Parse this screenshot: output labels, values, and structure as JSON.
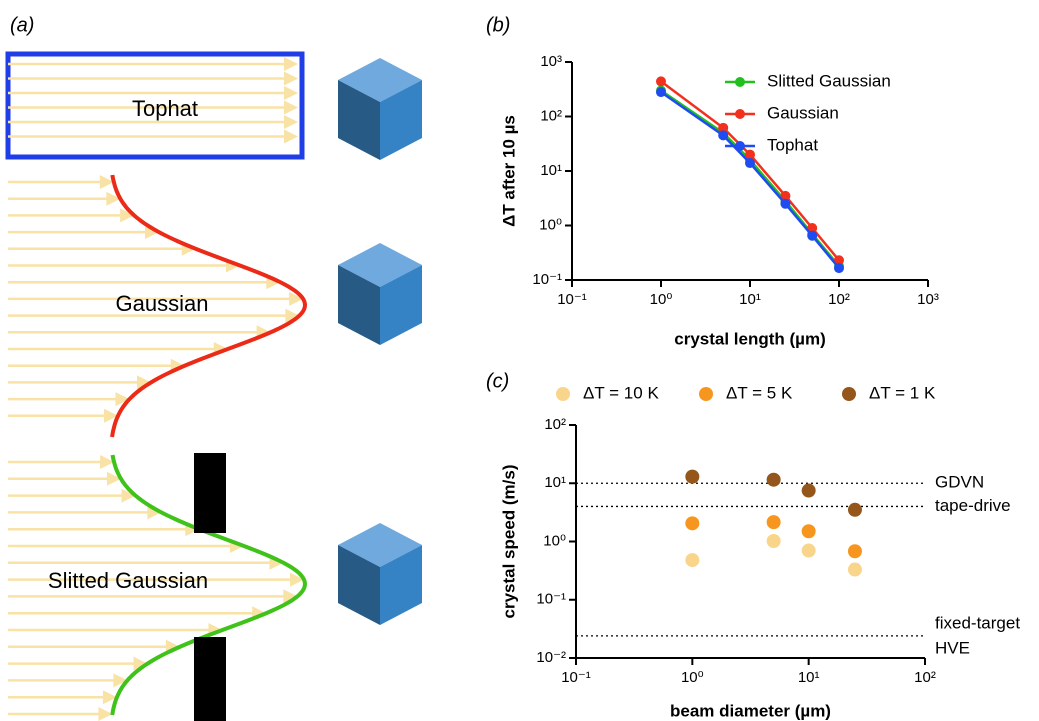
{
  "panel_a": {
    "label": "(a)",
    "profiles": [
      "Tophat",
      "Gaussian",
      "Slitted Gaussian"
    ]
  },
  "chart_data": [
    {
      "type": "line",
      "panel_label": "(b)",
      "x_label": "crystal length (µm)",
      "y_label": "ΔT after 10 µs",
      "xscale": "log",
      "yscale": "log",
      "x": [
        1,
        5,
        10,
        25,
        50,
        100
      ],
      "series": [
        {
          "name": "Slitted Gaussian",
          "color": "#22c01e",
          "values": [
            300,
            50,
            16,
            2.8,
            0.7,
            0.18
          ]
        },
        {
          "name": "Gaussian",
          "color": "#f2301e",
          "values": [
            440,
            62,
            20,
            3.5,
            0.9,
            0.23
          ]
        },
        {
          "name": "Tophat",
          "color": "#1f4cf0",
          "values": [
            280,
            45,
            14,
            2.5,
            0.65,
            0.165
          ]
        }
      ],
      "xlim": [
        0.1,
        1000
      ],
      "ylim": [
        0.1,
        1000
      ],
      "xticks": [
        {
          "value": 0.1,
          "label": "10⁻¹"
        },
        {
          "value": 1,
          "label": "10⁰"
        },
        {
          "value": 10,
          "label": "10¹"
        },
        {
          "value": 100,
          "label": "10²"
        },
        {
          "value": 1000,
          "label": "10³"
        }
      ],
      "yticks": [
        {
          "value": 0.1,
          "label": "10⁻¹"
        },
        {
          "value": 1,
          "label": "10⁰"
        },
        {
          "value": 10,
          "label": "10¹"
        },
        {
          "value": 100,
          "label": "10²"
        },
        {
          "value": 1000,
          "label": "10³"
        }
      ],
      "legend": "top-right"
    },
    {
      "type": "scatter",
      "panel_label": "(c)",
      "x_label": "beam diameter (µm)",
      "y_label": "crystal speed (m/s)",
      "xscale": "log",
      "yscale": "log",
      "x": [
        1,
        5,
        10,
        25
      ],
      "series": [
        {
          "name": "ΔT = 10 K",
          "color": "#f9d58c",
          "values": [
            0.48,
            1.02,
            0.7,
            0.33
          ]
        },
        {
          "name": "ΔT = 5 K",
          "color": "#f7961f",
          "values": [
            2.05,
            2.15,
            1.5,
            0.68
          ]
        },
        {
          "name": "ΔT = 1 K",
          "color": "#95561b",
          "values": [
            13,
            11.5,
            7.5,
            3.5
          ]
        }
      ],
      "xlim": [
        0.1,
        100
      ],
      "ylim": [
        0.01,
        100
      ],
      "xticks": [
        {
          "value": 0.1,
          "label": "10⁻¹"
        },
        {
          "value": 1,
          "label": "10⁰"
        },
        {
          "value": 10,
          "label": "10¹"
        },
        {
          "value": 100,
          "label": "10²"
        }
      ],
      "yticks": [
        {
          "value": 0.01,
          "label": "10⁻²"
        },
        {
          "value": 0.1,
          "label": "10⁻¹"
        },
        {
          "value": 1,
          "label": "10⁰"
        },
        {
          "value": 10,
          "label": "10¹"
        },
        {
          "value": 100,
          "label": "10²"
        }
      ],
      "reference_lines": [
        {
          "value": 10,
          "label": "GDVN"
        },
        {
          "value": 4,
          "label": "tape-drive"
        },
        {
          "value": 0.024,
          "label": "fixed-target",
          "label_below": "HVE"
        }
      ],
      "legend": "top"
    }
  ]
}
